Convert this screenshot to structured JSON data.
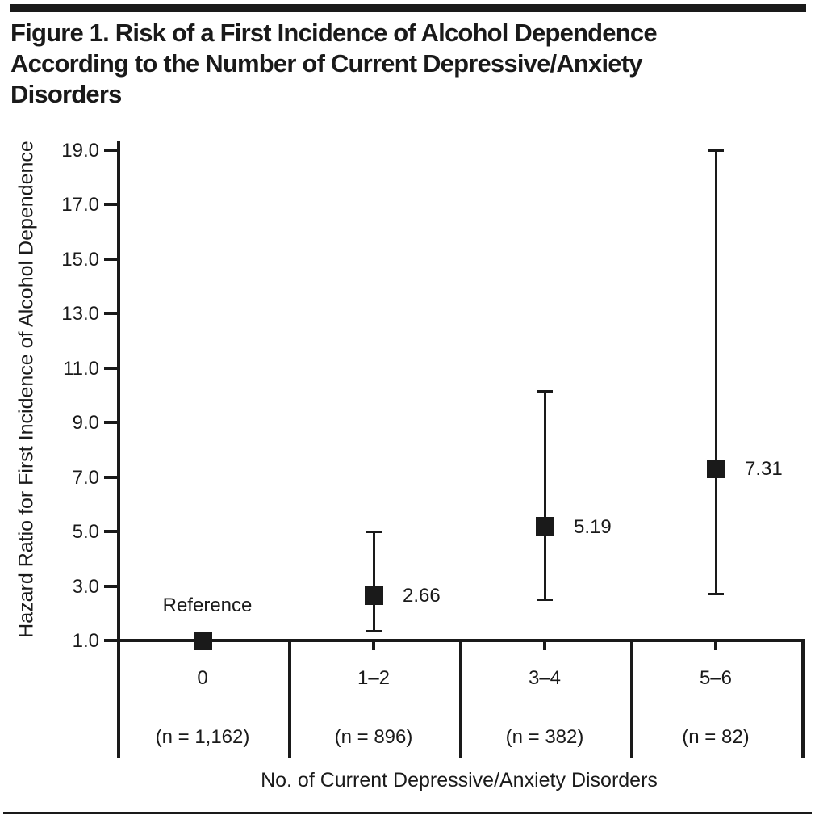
{
  "colors": {
    "ink": "#1a1a1a",
    "background": "#ffffff"
  },
  "figure": {
    "title_text": "Figure 1. Risk of a First Incidence of Alcohol Dependence\nAccording to the Number of Current Depressive/Anxiety\nDisorders"
  },
  "chart_data": {
    "type": "scatter",
    "subtype": "point-estimates-with-error-bars",
    "title": "Figure 1. Risk of a First Incidence of Alcohol Dependence According to the Number of Current Depressive/Anxiety Disorders",
    "xlabel": "No. of Current Depressive/Anxiety Disorders",
    "ylabel": "Hazard Ratio for First Incidence of Alcohol Dependence",
    "ylim": [
      1.0,
      19.0
    ],
    "ytick_labels": [
      "19.0",
      "17.0",
      "15.0",
      "13.0",
      "11.0",
      "9.0",
      "7.0",
      "5.0",
      "3.0",
      "1.0"
    ],
    "grid": false,
    "legend_position": "none",
    "marker": "filled-black-square",
    "categories": [
      {
        "label": "0",
        "n_label": "(n = 1,162)",
        "n": 1162
      },
      {
        "label": "1–2",
        "n_label": "(n = 896)",
        "n": 896
      },
      {
        "label": "3–4",
        "n_label": "(n = 382)",
        "n": 382
      },
      {
        "label": "5–6",
        "n_label": "(n = 82)",
        "n": 82
      }
    ],
    "points": [
      {
        "category": "0",
        "hazard_ratio": 1.0,
        "value_label": null,
        "annotation": "Reference",
        "ci_low": null,
        "ci_high": null
      },
      {
        "category": "1–2",
        "hazard_ratio": 2.66,
        "value_label": "2.66",
        "annotation": null,
        "ci_low": 1.35,
        "ci_high": 5.0
      },
      {
        "category": "3–4",
        "hazard_ratio": 5.19,
        "value_label": "5.19",
        "annotation": null,
        "ci_low": 2.5,
        "ci_high": 10.15
      },
      {
        "category": "5–6",
        "hazard_ratio": 7.31,
        "value_label": "7.31",
        "annotation": null,
        "ci_low": 2.7,
        "ci_high": 19.0
      }
    ]
  }
}
